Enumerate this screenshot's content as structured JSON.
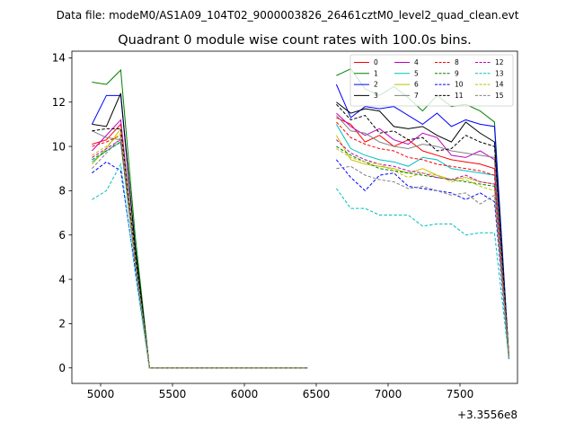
{
  "figure": {
    "suptitle": "Data file: modeM0/AS1A09_104T02_9000003826_26461cztM0_level2_quad_clean.evt"
  },
  "chart_data": {
    "type": "line",
    "title": "Quadrant 0 module wise count rates with 100.0s bins.",
    "xlabel": "",
    "ylabel": "",
    "x_offset_label": "+3.3556e8",
    "xlim": [
      4800,
      7900
    ],
    "ylim": [
      -0.7,
      14.3
    ],
    "x_ticks": [
      5000,
      5500,
      6000,
      6500,
      7000,
      7500
    ],
    "y_ticks": [
      0,
      2,
      4,
      6,
      8,
      10,
      12,
      14
    ],
    "grid": false,
    "legend_position": "upper-right",
    "x": [
      4940,
      5040,
      5140,
      5240,
      5340,
      5440,
      5540,
      5640,
      5740,
      5840,
      5940,
      6040,
      6140,
      6240,
      6340,
      6440,
      6540,
      6640,
      6740,
      6840,
      6940,
      7040,
      7140,
      7240,
      7340,
      7440,
      7540,
      7640,
      7740,
      7840
    ],
    "series": [
      {
        "name": "0",
        "color": "#ff0000",
        "dash": "solid",
        "values": [
          10.1,
          10.3,
          11.0,
          5.0,
          0.0,
          0.0,
          0.0,
          0.0,
          0.0,
          0.0,
          0.0,
          0.0,
          0.0,
          0.0,
          0.0,
          0.0,
          null,
          11.3,
          11.0,
          10.2,
          10.5,
          10.0,
          10.3,
          9.8,
          9.6,
          9.4,
          9.3,
          9.2,
          9.0,
          0.6
        ]
      },
      {
        "name": "1",
        "color": "#008000",
        "dash": "solid",
        "values": [
          12.9,
          12.8,
          13.45,
          6.0,
          0.0,
          0.0,
          0.0,
          0.0,
          0.0,
          0.0,
          0.0,
          0.0,
          0.0,
          0.0,
          0.0,
          0.0,
          null,
          13.2,
          13.5,
          12.6,
          12.3,
          12.7,
          12.2,
          11.6,
          12.3,
          11.8,
          11.9,
          11.6,
          11.1,
          0.5
        ]
      },
      {
        "name": "2",
        "color": "#0000ff",
        "dash": "solid",
        "values": [
          11.0,
          12.3,
          12.3,
          5.5,
          0.0,
          0.0,
          0.0,
          0.0,
          0.0,
          0.0,
          0.0,
          0.0,
          0.0,
          0.0,
          0.0,
          0.0,
          null,
          12.8,
          11.3,
          11.8,
          11.7,
          11.8,
          11.4,
          11.0,
          11.5,
          10.9,
          11.2,
          11.0,
          10.9,
          0.5
        ]
      },
      {
        "name": "3",
        "color": "#000000",
        "dash": "solid",
        "values": [
          11.0,
          10.9,
          12.4,
          5.5,
          0.0,
          0.0,
          0.0,
          0.0,
          0.0,
          0.0,
          0.0,
          0.0,
          0.0,
          0.0,
          0.0,
          0.0,
          null,
          12.0,
          11.5,
          11.7,
          11.6,
          10.9,
          10.8,
          10.9,
          10.5,
          10.2,
          11.1,
          10.6,
          10.2,
          0.5
        ]
      },
      {
        "name": "4",
        "color": "#bf00bf",
        "dash": "solid",
        "values": [
          9.8,
          10.5,
          11.2,
          5.0,
          0.0,
          0.0,
          0.0,
          0.0,
          0.0,
          0.0,
          0.0,
          0.0,
          0.0,
          0.0,
          0.0,
          0.0,
          null,
          11.5,
          10.9,
          10.5,
          10.8,
          10.3,
          10.1,
          10.6,
          10.4,
          9.6,
          9.5,
          9.8,
          9.4,
          0.5
        ]
      },
      {
        "name": "5",
        "color": "#00bfbf",
        "dash": "solid",
        "values": [
          9.3,
          9.8,
          10.2,
          4.8,
          0.0,
          0.0,
          0.0,
          0.0,
          0.0,
          0.0,
          0.0,
          0.0,
          0.0,
          0.0,
          0.0,
          0.0,
          null,
          11.0,
          9.9,
          9.6,
          9.4,
          9.3,
          9.1,
          9.5,
          9.4,
          9.0,
          8.9,
          8.8,
          8.7,
          0.5
        ]
      },
      {
        "name": "6",
        "color": "#bfbf00",
        "dash": "solid",
        "values": [
          9.2,
          9.9,
          10.8,
          5.0,
          0.0,
          0.0,
          0.0,
          0.0,
          0.0,
          0.0,
          0.0,
          0.0,
          0.0,
          0.0,
          0.0,
          0.0,
          null,
          10.5,
          9.4,
          9.2,
          9.1,
          9.0,
          8.8,
          9.0,
          8.7,
          8.5,
          8.6,
          8.4,
          8.3,
          0.5
        ]
      },
      {
        "name": "7",
        "color": "#808080",
        "dash": "solid",
        "values": [
          10.7,
          10.4,
          10.3,
          5.0,
          0.0,
          0.0,
          0.0,
          0.0,
          0.0,
          0.0,
          0.0,
          0.0,
          0.0,
          0.0,
          0.0,
          0.0,
          null,
          11.4,
          10.7,
          10.6,
          10.2,
          10.0,
          9.9,
          10.1,
          10.0,
          9.8,
          9.7,
          9.6,
          9.5,
          0.5
        ]
      },
      {
        "name": "8",
        "color": "#ff0000",
        "dash": "dashed",
        "values": [
          10.0,
          10.2,
          10.5,
          4.9,
          0.0,
          0.0,
          0.0,
          0.0,
          0.0,
          0.0,
          0.0,
          0.0,
          0.0,
          0.0,
          0.0,
          0.0,
          null,
          11.1,
          10.4,
          10.1,
          9.9,
          9.8,
          9.5,
          9.4,
          9.2,
          9.1,
          9.0,
          8.9,
          8.7,
          0.5
        ]
      },
      {
        "name": "9",
        "color": "#008000",
        "dash": "dashed",
        "values": [
          9.4,
          9.8,
          10.2,
          4.8,
          0.0,
          0.0,
          0.0,
          0.0,
          0.0,
          0.0,
          0.0,
          0.0,
          0.0,
          0.0,
          0.0,
          0.0,
          null,
          10.0,
          9.6,
          9.3,
          9.0,
          8.9,
          8.8,
          8.7,
          8.6,
          8.5,
          8.4,
          8.3,
          8.2,
          0.5
        ]
      },
      {
        "name": "10",
        "color": "#0000ff",
        "dash": "dashed",
        "values": [
          8.8,
          9.3,
          8.9,
          4.5,
          0.0,
          0.0,
          0.0,
          0.0,
          0.0,
          0.0,
          0.0,
          0.0,
          0.0,
          0.0,
          0.0,
          0.0,
          null,
          9.4,
          8.6,
          8.0,
          8.7,
          8.8,
          8.2,
          8.1,
          8.0,
          7.9,
          7.6,
          7.9,
          7.5,
          0.4
        ]
      },
      {
        "name": "11",
        "color": "#000000",
        "dash": "dashed",
        "values": [
          10.7,
          10.8,
          10.8,
          5.2,
          0.0,
          0.0,
          0.0,
          0.0,
          0.0,
          0.0,
          0.0,
          0.0,
          0.0,
          0.0,
          0.0,
          0.0,
          null,
          11.9,
          11.2,
          11.4,
          10.6,
          10.7,
          10.3,
          10.4,
          9.8,
          9.9,
          10.5,
          10.2,
          10.0,
          0.5
        ]
      },
      {
        "name": "12",
        "color": "#bf00bf",
        "dash": "dashed",
        "values": [
          9.5,
          9.9,
          10.3,
          4.8,
          0.0,
          0.0,
          0.0,
          0.0,
          0.0,
          0.0,
          0.0,
          0.0,
          0.0,
          0.0,
          0.0,
          0.0,
          null,
          10.3,
          9.7,
          9.4,
          9.2,
          9.1,
          8.9,
          8.8,
          8.6,
          8.5,
          8.7,
          8.4,
          8.3,
          0.5
        ]
      },
      {
        "name": "13",
        "color": "#00bfbf",
        "dash": "dashed",
        "values": [
          7.6,
          8.0,
          9.2,
          4.3,
          0.0,
          0.0,
          0.0,
          0.0,
          0.0,
          0.0,
          0.0,
          0.0,
          0.0,
          0.0,
          0.0,
          0.0,
          null,
          8.1,
          7.2,
          7.2,
          6.9,
          6.9,
          6.9,
          6.4,
          6.5,
          6.5,
          6.0,
          6.1,
          6.1,
          0.4
        ]
      },
      {
        "name": "14",
        "color": "#bfbf00",
        "dash": "dashed",
        "values": [
          9.6,
          10.0,
          10.6,
          4.9,
          0.0,
          0.0,
          0.0,
          0.0,
          0.0,
          0.0,
          0.0,
          0.0,
          0.0,
          0.0,
          0.0,
          0.0,
          null,
          9.9,
          9.5,
          9.3,
          9.2,
          8.9,
          8.6,
          8.8,
          8.7,
          8.4,
          8.5,
          8.2,
          8.0,
          0.5
        ]
      },
      {
        "name": "15",
        "color": "#808080",
        "dash": "dashed",
        "values": [
          9.0,
          9.7,
          10.4,
          4.8,
          0.0,
          0.0,
          0.0,
          0.0,
          0.0,
          0.0,
          0.0,
          0.0,
          0.0,
          0.0,
          0.0,
          0.0,
          null,
          9.0,
          9.1,
          8.7,
          8.5,
          8.4,
          8.1,
          8.2,
          8.0,
          7.8,
          7.9,
          7.4,
          7.8,
          0.5
        ]
      }
    ]
  }
}
